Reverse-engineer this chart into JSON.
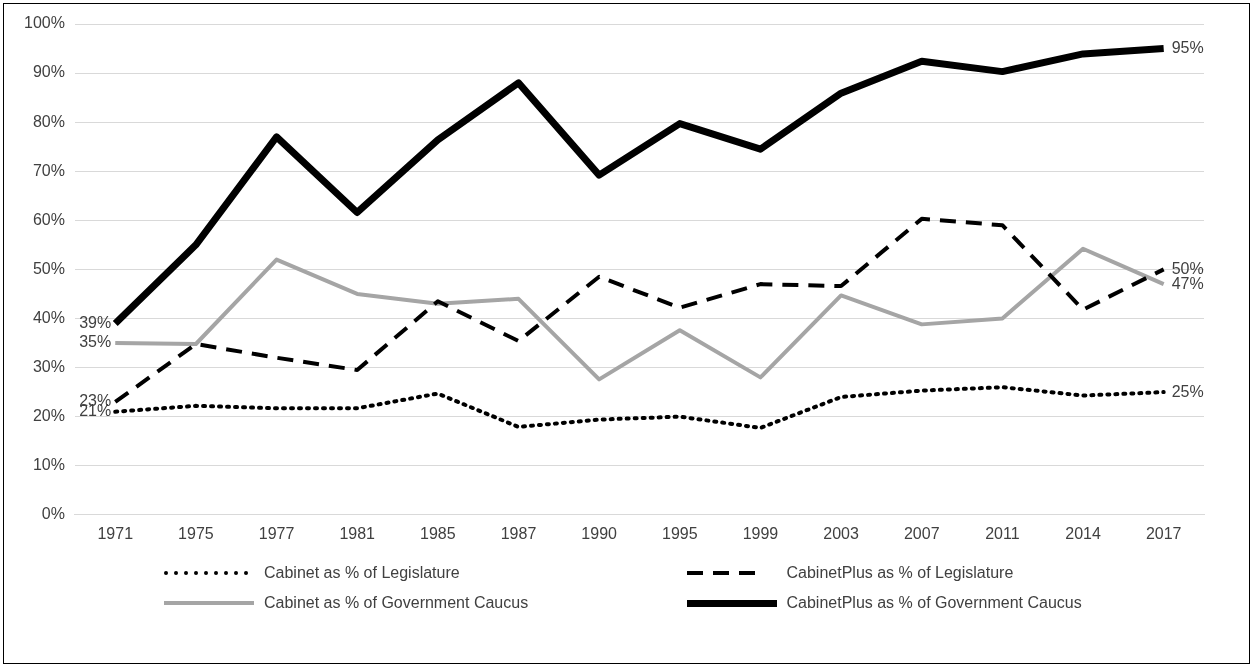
{
  "chart_data": {
    "type": "line",
    "categories": [
      "1971",
      "1975",
      "1977",
      "1981",
      "1985",
      "1987",
      "1990",
      "1995",
      "1999",
      "2003",
      "2007",
      "2011",
      "2014",
      "2017"
    ],
    "ylim": [
      0,
      100
    ],
    "yticks": [
      {
        "value": 0,
        "label": "0%"
      },
      {
        "value": 10,
        "label": "10%"
      },
      {
        "value": 20,
        "label": "20%"
      },
      {
        "value": 30,
        "label": "30%"
      },
      {
        "value": 40,
        "label": "40%"
      },
      {
        "value": 50,
        "label": "50%"
      },
      {
        "value": 60,
        "label": "60%"
      },
      {
        "value": 70,
        "label": "70%"
      },
      {
        "value": 80,
        "label": "80%"
      },
      {
        "value": 90,
        "label": "90%"
      },
      {
        "value": 100,
        "label": "100%"
      }
    ],
    "grid": "y",
    "legend": "bottom",
    "marker": "none",
    "series": [
      {
        "name": "Cabinet as % of Legislature",
        "color": "#000000",
        "line_style": "dotted",
        "values": [
          21,
          22.2,
          21.7,
          21.7,
          24.7,
          17.9,
          19.4,
          20,
          17.7,
          24,
          25.3,
          26,
          24.3,
          25
        ],
        "value_labels": [
          "21%",
          null,
          null,
          null,
          null,
          null,
          null,
          null,
          null,
          null,
          null,
          null,
          null,
          "25%"
        ]
      },
      {
        "name": "CabinetPlus as % of Legislature",
        "color": "#000000",
        "line_style": "dashed",
        "values": [
          23,
          34.8,
          32,
          29.5,
          43.5,
          35.4,
          48.5,
          42.2,
          47,
          46.6,
          60.3,
          59,
          41.8,
          50
        ],
        "value_labels": [
          "23%",
          null,
          null,
          null,
          null,
          null,
          null,
          null,
          null,
          null,
          null,
          null,
          null,
          "50%"
        ]
      },
      {
        "name": "Cabinet as % of Government Caucus",
        "color": "#a5a5a5",
        "line_style": "solid",
        "values": [
          35,
          34.8,
          52,
          45,
          43,
          44,
          27.6,
          37.6,
          28,
          44.7,
          38.8,
          40,
          54.2,
          47
        ],
        "value_labels": [
          "35%",
          null,
          null,
          null,
          null,
          null,
          null,
          null,
          null,
          null,
          null,
          null,
          null,
          "47%"
        ]
      },
      {
        "name": "CabinetPlus as % of Government Caucus",
        "color": "#000000",
        "line_style": "solid",
        "values": [
          39,
          55,
          77,
          61.6,
          76.4,
          88,
          69.2,
          79.7,
          74.5,
          85.9,
          92.4,
          90.3,
          93.9,
          95
        ],
        "value_labels": [
          "39%",
          null,
          null,
          null,
          null,
          null,
          null,
          null,
          null,
          null,
          null,
          null,
          null,
          "95%"
        ]
      }
    ]
  }
}
